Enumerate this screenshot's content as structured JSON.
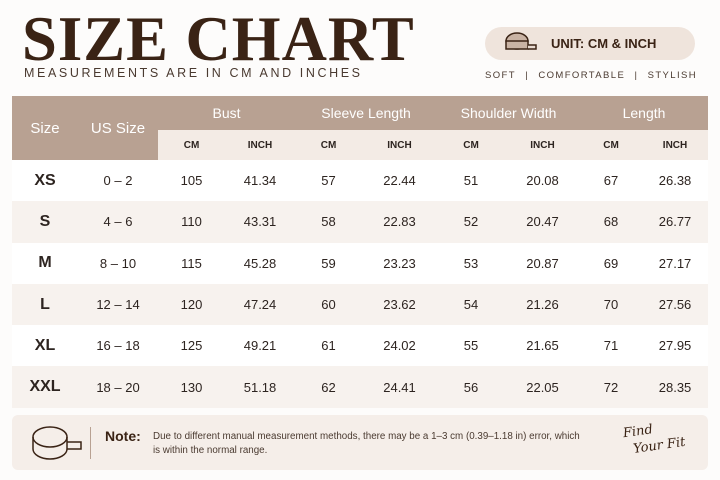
{
  "header": {
    "title": "SIZE CHART",
    "subtitle": "MEASUREMENTS ARE IN CM AND INCHES",
    "unit": "UNIT: CM & INCH",
    "tags": [
      "SOFT",
      "COMFORTABLE",
      "STYLISH"
    ]
  },
  "table": {
    "columns": [
      "Size",
      "US Size"
    ],
    "groups": [
      {
        "name": "Bust",
        "sub": [
          "CM",
          "INCH"
        ]
      },
      {
        "name": "Sleeve Length",
        "sub": [
          "CM",
          "INCH"
        ]
      },
      {
        "name": "Shoulder Width",
        "sub": [
          "CM",
          "INCH"
        ]
      },
      {
        "name": "Length",
        "sub": [
          "CM",
          "INCH"
        ]
      }
    ],
    "rows": [
      [
        "XS",
        "0 – 2",
        "105",
        "41.34",
        "57",
        "22.44",
        "51",
        "20.08",
        "67",
        "26.38"
      ],
      [
        "S",
        "4 – 6",
        "110",
        "43.31",
        "58",
        "22.83",
        "52",
        "20.47",
        "68",
        "26.77"
      ],
      [
        "M",
        "8 – 10",
        "115",
        "45.28",
        "59",
        "23.23",
        "53",
        "20.87",
        "69",
        "27.17"
      ],
      [
        "L",
        "12 – 14",
        "120",
        "47.24",
        "60",
        "23.62",
        "54",
        "21.26",
        "70",
        "27.56"
      ],
      [
        "XL",
        "16 – 18",
        "125",
        "49.21",
        "61",
        "24.02",
        "55",
        "21.65",
        "71",
        "27.95"
      ],
      [
        "XXL",
        "18 – 20",
        "130",
        "51.18",
        "62",
        "24.41",
        "56",
        "22.05",
        "72",
        "28.35"
      ]
    ]
  },
  "note": {
    "label": "Note:",
    "text": "Due to different manual measurement methods, there may be a 1–3 cm (0.39–1.18 in) error, which is within the normal range."
  },
  "tagline": [
    "Find",
    "Your Fit"
  ]
}
